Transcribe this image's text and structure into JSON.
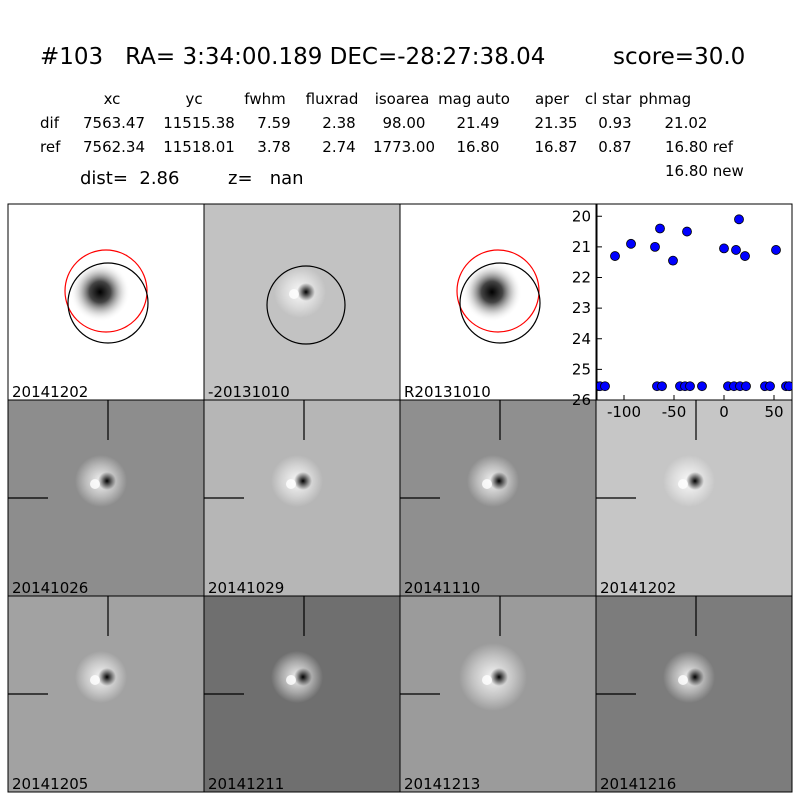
{
  "header": {
    "title": "#103   RA= 3:34:00.189 DEC=-28:27:38.04",
    "score": "score=30.0"
  },
  "table": {
    "columns": [
      "xc",
      "yc",
      "fwhm",
      "fluxrad",
      "isoarea",
      "mag auto",
      "aper",
      "cl star",
      "phmag"
    ],
    "rows": [
      [
        "dif",
        "7563.47",
        "11515.38",
        "7.59",
        "2.38",
        "98.00",
        "21.49",
        "21.35",
        "0.93",
        "21.02"
      ],
      [
        "ref",
        "7562.34",
        "11518.01",
        "3.78",
        "2.74",
        "1773.00",
        "16.80",
        "16.87",
        "0.87",
        "16.80 ref"
      ]
    ],
    "extra": "16.80 new"
  },
  "dist": "dist=  2.86",
  "z": "z=   nan",
  "panels": [
    {
      "label": "20141202"
    },
    {
      "label": "-20131010"
    },
    {
      "label": "R20131010"
    },
    {
      "label": "20141026"
    },
    {
      "label": "20141029"
    },
    {
      "label": "20141110"
    },
    {
      "label": "20141202",
      "color": "#ff0000"
    },
    {
      "label": "20141205"
    },
    {
      "label": "20141211"
    },
    {
      "label": "20141213"
    },
    {
      "label": "20141216"
    }
  ],
  "chart_data": {
    "type": "scatter",
    "x": [
      -109,
      -93,
      -69,
      -64,
      -51,
      -37,
      0,
      12,
      15,
      21,
      52,
      -127,
      -124,
      -119,
      -67,
      -62,
      -44,
      -39,
      -34,
      -22,
      4,
      10,
      16,
      22,
      41,
      46,
      62,
      65
    ],
    "values": [
      21.3,
      20.9,
      21.0,
      20.4,
      21.45,
      20.5,
      21.05,
      21.1,
      20.1,
      21.3,
      21.1,
      25.55,
      25.55,
      25.55,
      25.55,
      25.55,
      25.55,
      25.55,
      25.55,
      25.55,
      25.55,
      25.55,
      25.55,
      25.55,
      25.55,
      25.55,
      25.55,
      25.55
    ],
    "color": "#0000ff",
    "xlim": [
      -127,
      68
    ],
    "ylim": [
      26,
      19.6
    ],
    "xticks": [
      -100,
      -50,
      0,
      50
    ],
    "yticks": [
      20,
      21,
      22,
      23,
      24,
      25,
      26
    ]
  }
}
